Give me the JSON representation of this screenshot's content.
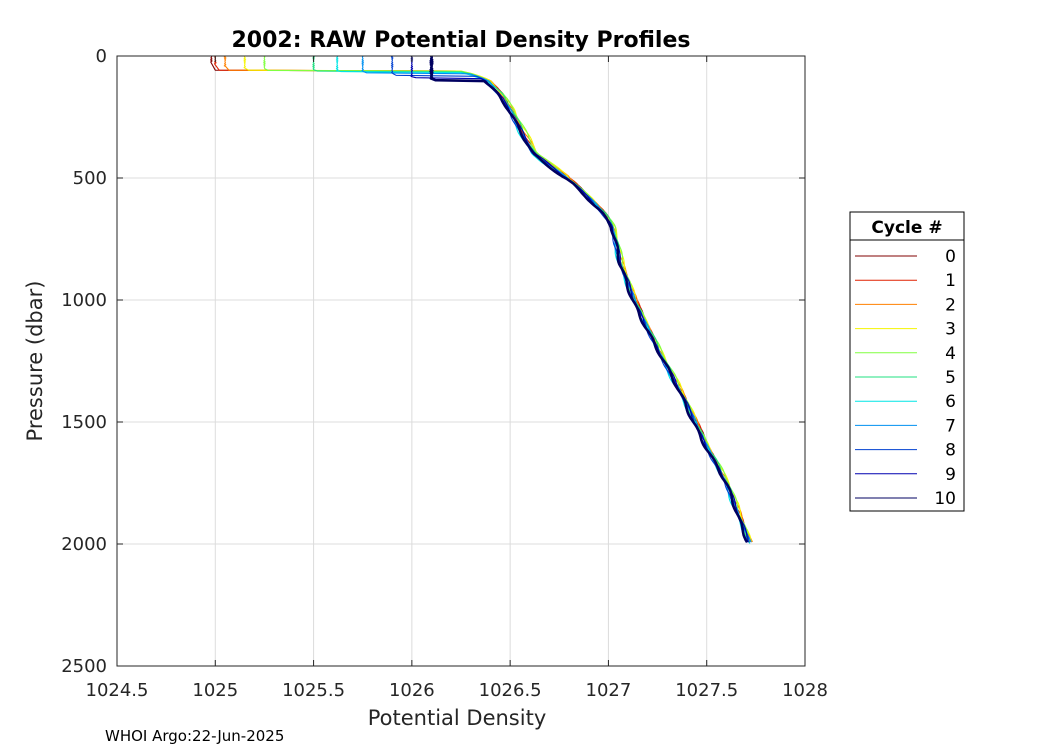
{
  "chart_data": {
    "type": "line",
    "title": "2002: RAW Potential Density Profiles",
    "xlabel": "Potential Density",
    "ylabel": "Pressure (dbar)",
    "xlim": [
      1024.5,
      1028
    ],
    "ylim": [
      0,
      2500
    ],
    "y_reversed": true,
    "grid": true,
    "x_ticks": [
      "1024.5",
      "1025",
      "1025.5",
      "1026",
      "1026.5",
      "1027",
      "1027.5",
      "1028"
    ],
    "x_tick_values": [
      1024.5,
      1025,
      1025.5,
      1026,
      1026.5,
      1027,
      1027.5,
      1028
    ],
    "y_ticks": [
      "0",
      "500",
      "1000",
      "1500",
      "2000",
      "2500"
    ],
    "y_tick_values": [
      0,
      500,
      1000,
      1500,
      2000,
      2500
    ],
    "legend": {
      "title": "Cycle #",
      "placement": "right"
    },
    "common_profile": {
      "density": [
        1026.22,
        1026.3,
        1026.38,
        1026.44,
        1026.5,
        1026.55,
        1026.62,
        1026.72,
        1026.82,
        1026.9,
        1026.97,
        1027.02,
        1027.06,
        1027.13,
        1027.25,
        1027.38,
        1027.5,
        1027.6,
        1027.67,
        1027.72
      ],
      "pressure": [
        60,
        75,
        100,
        150,
        220,
        300,
        400,
        460,
        520,
        580,
        640,
        700,
        850,
        1000,
        1200,
        1400,
        1600,
        1750,
        1900,
        2000
      ]
    },
    "series": [
      {
        "name": "0",
        "color": "#800000",
        "surface_density": 1024.98,
        "mixed_depth": 25,
        "offset": 0.01
      },
      {
        "name": "1",
        "color": "#e02000",
        "surface_density": 1025.0,
        "mixed_depth": 35,
        "offset": 0.012
      },
      {
        "name": "2",
        "color": "#ff8000",
        "surface_density": 1025.05,
        "mixed_depth": 45,
        "offset": 0.015
      },
      {
        "name": "3",
        "color": "#f5f500",
        "surface_density": 1025.15,
        "mixed_depth": 50,
        "offset": 0.02
      },
      {
        "name": "4",
        "color": "#80ff40",
        "surface_density": 1025.25,
        "mixed_depth": 55,
        "offset": 0.018
      },
      {
        "name": "5",
        "color": "#20e080",
        "surface_density": 1025.5,
        "mixed_depth": 58,
        "offset": 0.008
      },
      {
        "name": "6",
        "color": "#00e5e5",
        "surface_density": 1025.62,
        "mixed_depth": 60,
        "offset": -0.01
      },
      {
        "name": "7",
        "color": "#0090f0",
        "surface_density": 1025.75,
        "mixed_depth": 65,
        "offset": 0.0
      },
      {
        "name": "8",
        "color": "#0040d0",
        "surface_density": 1025.9,
        "mixed_depth": 75,
        "offset": -0.005
      },
      {
        "name": "9",
        "color": "#0000b0",
        "surface_density": 1026.0,
        "mixed_depth": 85,
        "offset": 0.002
      },
      {
        "name": "10",
        "color": "#000060",
        "surface_density": 1026.1,
        "mixed_depth": 95,
        "offset": -0.008
      }
    ]
  },
  "footer": {
    "text": "WHOI Argo:22-Jun-2025"
  }
}
